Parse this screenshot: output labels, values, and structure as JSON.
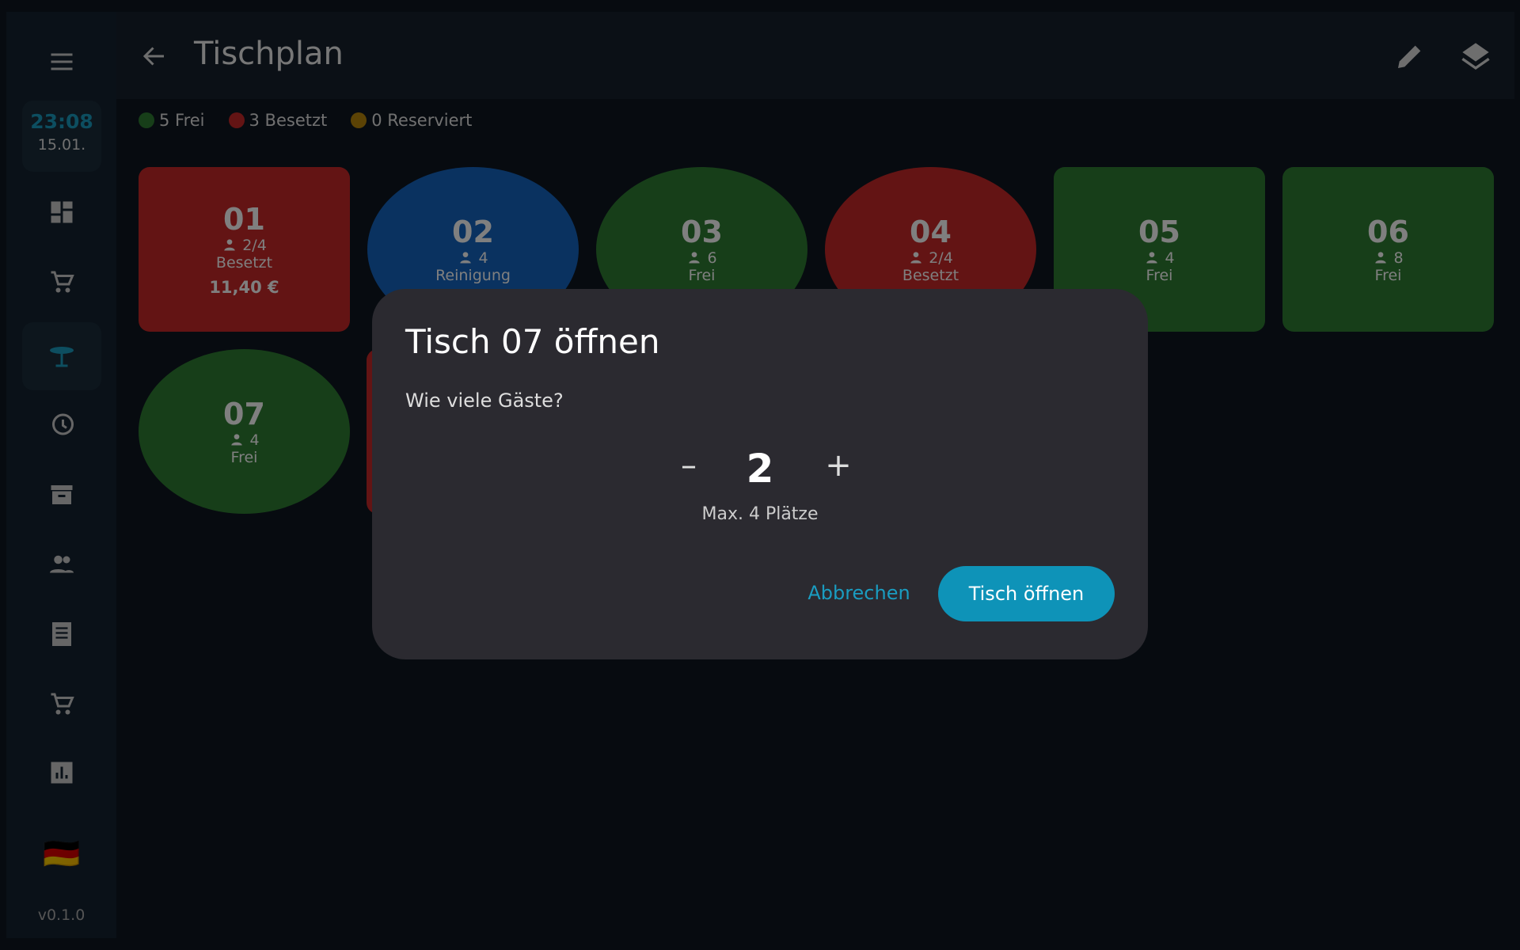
{
  "sidebar": {
    "time": "23:08",
    "date": "15.01.",
    "flag": "🇩🇪",
    "version": "v0.1.0"
  },
  "header": {
    "title": "Tischplan"
  },
  "legend": [
    {
      "label": "5 Frei",
      "color": "#2e7d32"
    },
    {
      "label": "3 Besetzt",
      "color": "#c62828"
    },
    {
      "label": "0 Reserviert",
      "color": "#b8860b"
    }
  ],
  "tables": [
    {
      "number": "01",
      "guests": "2/4",
      "status": "Besetzt",
      "amount": "11,40 €",
      "shape": "square",
      "color": "#c62828"
    },
    {
      "number": "02",
      "guests": "4",
      "status": "Reinigung",
      "shape": "round",
      "color": "#1565c0"
    },
    {
      "number": "03",
      "guests": "6",
      "status": "Frei",
      "shape": "round",
      "color": "#2e7d32"
    },
    {
      "number": "04",
      "guests": "2/4",
      "status": "Besetzt",
      "shape": "round",
      "color": "#c62828"
    },
    {
      "number": "05",
      "guests": "4",
      "status": "Frei",
      "shape": "square",
      "color": "#2e7d32"
    },
    {
      "number": "06",
      "guests": "8",
      "status": "Frei",
      "shape": "square",
      "color": "#2e7d32"
    },
    {
      "number": "07",
      "guests": "4",
      "status": "Frei",
      "shape": "round",
      "color": "#2e7d32"
    },
    {
      "shape": "square",
      "color": "#c62828"
    }
  ],
  "dialog": {
    "title": "Tisch 07 öffnen",
    "question": "Wie viele Gäste?",
    "minus": "–",
    "count": "2",
    "plus": "+",
    "max": "Max. 4 Plätze",
    "cancel": "Abbrechen",
    "confirm": "Tisch öffnen"
  }
}
